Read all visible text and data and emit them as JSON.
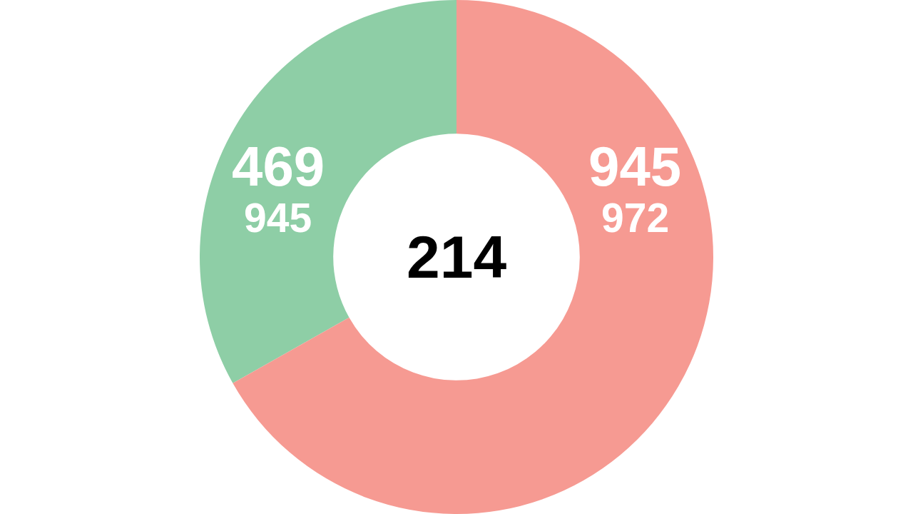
{
  "chart_data": {
    "type": "donut",
    "categories": [
      null,
      null
    ],
    "values": [
      469,
      945
    ],
    "colors": [
      "#8ecea6",
      "#f69a92"
    ],
    "value_labels": [
      "469",
      "945"
    ],
    "annotations": [
      "945",
      "972",
      "214"
    ]
  }
}
